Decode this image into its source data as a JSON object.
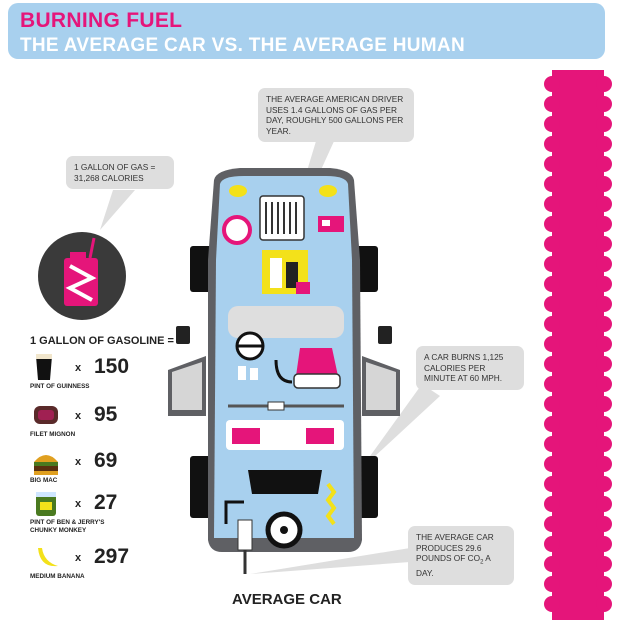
{
  "header": {
    "title": "BURNING FUEL",
    "subtitle": "THE AVERAGE CAR VS. THE AVERAGE HUMAN"
  },
  "callouts": {
    "gallon_calories": "1 GALLON OF GAS = 31,268 CALORIES",
    "driver_usage": "THE AVERAGE AMERICAN DRIVER USES 1.4 GALLONS OF GAS PER DAY, ROUGHLY 500 GALLONS PER YEAR.",
    "car_burn": "A CAR BURNS 1,125 CALORIES PER MINUTE AT 60 MPH.",
    "co2_line1": "THE AVERAGE CAR PRODUCES 29.6 POUNDS OF CO",
    "co2_sub": "2",
    "co2_line2": " A DAY."
  },
  "gallon_comparison": {
    "title": "1 GALLON OF GASOLINE =",
    "multiplier": "x",
    "items": [
      {
        "label": "PINT OF GUINNESS",
        "value": "150",
        "icon": "guinness-pint-icon"
      },
      {
        "label": "FILET MIGNON",
        "value": "95",
        "icon": "filet-mignon-icon"
      },
      {
        "label": "BIG MAC",
        "value": "69",
        "icon": "big-mac-icon"
      },
      {
        "label": "PINT OF BEN & JERRY'S CHUNKY MONKEY",
        "value": "27",
        "icon": "ice-cream-pint-icon"
      },
      {
        "label": "MEDIUM BANANA",
        "value": "297",
        "icon": "banana-icon"
      }
    ]
  },
  "car": {
    "label": "AVERAGE CAR"
  },
  "colors": {
    "header_bg": "#a8d0ee",
    "title_pink": "#e5157a",
    "car_body": "#a8d0ee",
    "accent_pink": "#e5157a",
    "accent_yellow": "#f3e11a",
    "callout_gray": "#dedede"
  }
}
